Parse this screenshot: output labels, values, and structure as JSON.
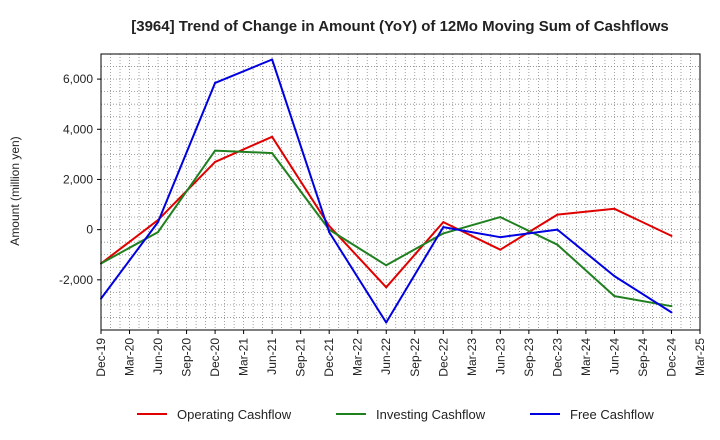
{
  "chart_data": {
    "type": "line",
    "title": "[3964]  Trend of Change in Amount (YoY) of 12Mo Moving Sum of Cashflows",
    "xlabel": "",
    "ylabel": "Amount (million yen)",
    "ylim": [
      -4000,
      7000
    ],
    "yticks": [
      -2000,
      0,
      2000,
      4000,
      6000
    ],
    "ytick_labels": [
      "-2,000",
      "0",
      "2,000",
      "4,000",
      "6,000"
    ],
    "categories": [
      "Dec-19",
      "Mar-20",
      "Jun-20",
      "Sep-20",
      "Dec-20",
      "Mar-21",
      "Jun-21",
      "Sep-21",
      "Dec-21",
      "Mar-22",
      "Jun-22",
      "Sep-22",
      "Dec-22",
      "Mar-23",
      "Jun-23",
      "Sep-23",
      "Dec-23",
      "Mar-24",
      "Jun-24",
      "Sep-24",
      "Dec-24",
      "Mar-25"
    ],
    "grid": true,
    "legend_position": "bottom",
    "series": [
      {
        "name": "Operating Cashflow",
        "color": "#e00000",
        "points": [
          {
            "x": "Dec-19",
            "y": -1350
          },
          {
            "x": "Jun-20",
            "y": 380
          },
          {
            "x": "Dec-20",
            "y": 2700
          },
          {
            "x": "Jun-21",
            "y": 3700
          },
          {
            "x": "Dec-21",
            "y": 150
          },
          {
            "x": "Jun-22",
            "y": -2300
          },
          {
            "x": "Dec-22",
            "y": 300
          },
          {
            "x": "Jun-23",
            "y": -800
          },
          {
            "x": "Dec-23",
            "y": 600
          },
          {
            "x": "Jun-24",
            "y": 830
          },
          {
            "x": "Dec-24",
            "y": -250
          }
        ]
      },
      {
        "name": "Investing Cashflow",
        "color": "#208020",
        "points": [
          {
            "x": "Dec-19",
            "y": -1350
          },
          {
            "x": "Jun-20",
            "y": -100
          },
          {
            "x": "Dec-20",
            "y": 3150
          },
          {
            "x": "Jun-21",
            "y": 3050
          },
          {
            "x": "Dec-21",
            "y": 0
          },
          {
            "x": "Jun-22",
            "y": -1420
          },
          {
            "x": "Dec-22",
            "y": -150
          },
          {
            "x": "Jun-23",
            "y": 500
          },
          {
            "x": "Dec-23",
            "y": -600
          },
          {
            "x": "Jun-24",
            "y": -2650
          },
          {
            "x": "Dec-24",
            "y": -3050
          }
        ]
      },
      {
        "name": "Free Cashflow",
        "color": "#0000e0",
        "points": [
          {
            "x": "Dec-19",
            "y": -2750
          },
          {
            "x": "Jun-20",
            "y": 300
          },
          {
            "x": "Dec-20",
            "y": 5850
          },
          {
            "x": "Jun-21",
            "y": 6780
          },
          {
            "x": "Dec-21",
            "y": -100
          },
          {
            "x": "Jun-22",
            "y": -3700
          },
          {
            "x": "Dec-22",
            "y": 100
          },
          {
            "x": "Jun-23",
            "y": -300
          },
          {
            "x": "Dec-23",
            "y": 0
          },
          {
            "x": "Jun-24",
            "y": -1850
          },
          {
            "x": "Dec-24",
            "y": -3300
          }
        ]
      }
    ]
  }
}
